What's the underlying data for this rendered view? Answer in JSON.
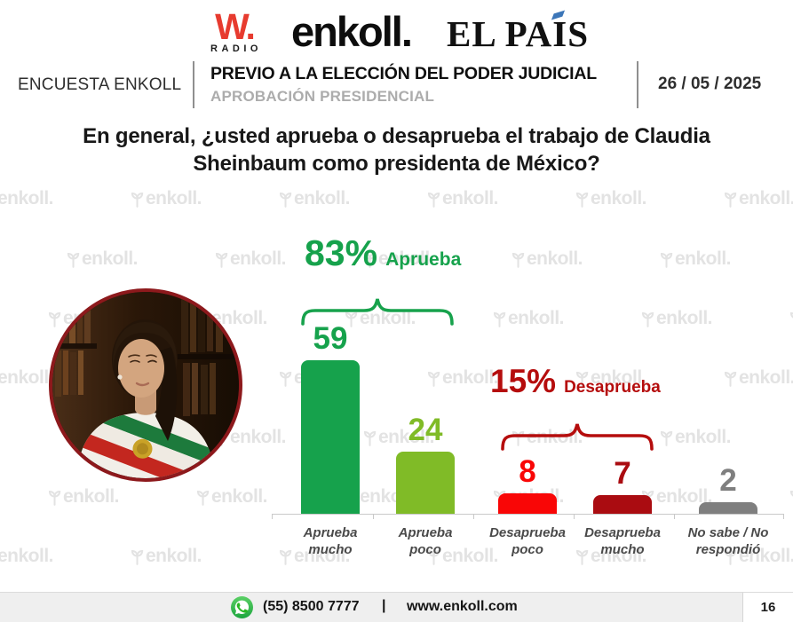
{
  "header": {
    "logos": {
      "wradio_w": "W.",
      "wradio_radio": "RADIO",
      "enkoll": "enkoll.",
      "elpais_prefix": "EL PA",
      "elpais_i": "I",
      "elpais_suffix": "S"
    },
    "band": {
      "left_label": "ENCUESTA ENKOLL",
      "title": "PREVIO A LA ELECCIÓN DEL PODER JUDICIAL",
      "subtitle": "APROBACIÓN PRESIDENCIAL",
      "date": "26 / 05 / 2025"
    }
  },
  "question": "En general, ¿usted aprueba o desaprueba el trabajo de Claudia Sheinbaum como presidenta de México?",
  "watermark_text": "enkoll.",
  "chart_data": {
    "type": "bar",
    "title": "En general, ¿usted aprueba o desaprueba el trabajo de Claudia Sheinbaum como presidenta de México?",
    "unit": "%",
    "categories": [
      "Aprueba mucho",
      "Aprueba poco",
      "Desaprueba poco",
      "Desaprueba mucho",
      "No sabe / No respondió"
    ],
    "category_lines": [
      [
        "Aprueba",
        "mucho"
      ],
      [
        "Aprueba",
        "poco"
      ],
      [
        "Desaprueba",
        "poco"
      ],
      [
        "Desaprueba",
        "mucho"
      ],
      [
        "No sabe / No",
        "respondió"
      ]
    ],
    "values": [
      59,
      24,
      8,
      7,
      2
    ],
    "bar_colors": [
      "#16A24C",
      "#80BB27",
      "#F90606",
      "#AA0C11",
      "#7F7F7F"
    ],
    "annotations": [
      {
        "pct": "83%",
        "label": "Aprueba",
        "color": "#16A24C",
        "spans": [
          "Aprueba mucho",
          "Aprueba poco"
        ]
      },
      {
        "pct": "15%",
        "label": "Desaprueba",
        "color": "#B50D0D",
        "spans": [
          "Desaprueba poco",
          "Desaprueba mucho"
        ]
      }
    ],
    "ylim": [
      0,
      60
    ],
    "grid": false,
    "legend": false,
    "xlabel": "",
    "ylabel": ""
  },
  "footer": {
    "phone": "(55) 8500 7777",
    "separator": "|",
    "website": "www.enkoll.com",
    "page_number": "16"
  }
}
